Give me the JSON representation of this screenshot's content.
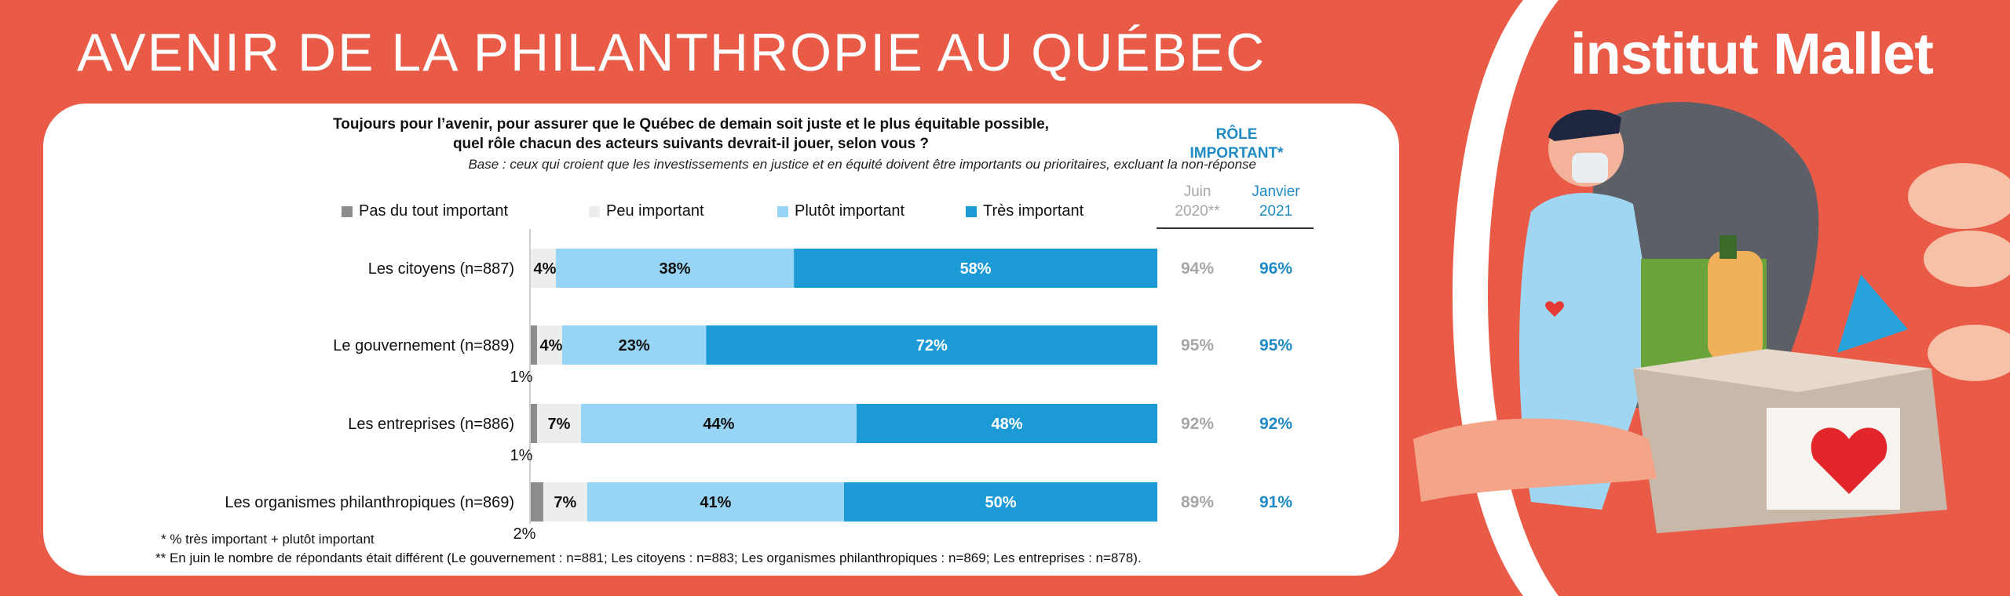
{
  "header": {
    "title": "AVENIR DE LA PHILANTHROPIE AU QUÉBEC",
    "logo_text": "institut Mallet"
  },
  "question": {
    "line1": "Toujours pour l’avenir, pour assurer que le Québec de demain soit juste et le plus équitable possible,",
    "line2": "quel rôle chacun des acteurs suivants devrait-il jouer, selon vous ?",
    "base": "Base : ceux qui croient que les investissements en justice et en équité doivent être importants ou prioritaires, excluant la non-réponse"
  },
  "side_table": {
    "title_line1": "RÔLE",
    "title_line2": "IMPORTANT*",
    "col1_line1": "Juin",
    "col1_line2": "2020**",
    "col2_line1": "Janvier",
    "col2_line2": "2021"
  },
  "colors": {
    "pas_du_tout": "#8c8c8c",
    "peu": "#ededed",
    "plutot": "#97d4f5",
    "tres": "#1b9ad6",
    "juin_text": "#a6a6a6",
    "janvier_text": "#1f8ac3",
    "background": "#e95b47"
  },
  "chart_data": {
    "type": "bar",
    "orientation": "horizontal",
    "stacked": true,
    "categories": [
      "Les citoyens (n=887)",
      "Le gouvernement (n=889)",
      "Les entreprises (n=886)",
      "Les organismes philanthropiques (n=869)"
    ],
    "series": [
      {
        "name": "Pas du tout important",
        "values": [
          0,
          1,
          1,
          2
        ],
        "labels": [
          "",
          "1%",
          "1%",
          "2%"
        ]
      },
      {
        "name": "Peu important",
        "values": [
          4,
          4,
          7,
          7
        ],
        "labels": [
          "4%",
          "4%",
          "7%",
          "7%"
        ]
      },
      {
        "name": "Plutôt important",
        "values": [
          38,
          23,
          44,
          41
        ],
        "labels": [
          "38%",
          "23%",
          "44%",
          "41%"
        ]
      },
      {
        "name": "Très important",
        "values": [
          58,
          72,
          48,
          50
        ],
        "labels": [
          "58%",
          "72%",
          "48%",
          "50%"
        ]
      }
    ],
    "xlim": [
      0,
      100
    ],
    "legend_position": "top",
    "grid": false,
    "role_important_juin_2020": [
      "94%",
      "95%",
      "92%",
      "89%"
    ],
    "role_important_janvier_2021": [
      "96%",
      "95%",
      "92%",
      "91%"
    ]
  },
  "footnotes": {
    "note1": "* % très important + plutôt important",
    "note2": "** En juin le nombre de répondants était différent (Le gouvernement : n=881; Les citoyens : n=883; Les organismes philanthropiques : n=869; Les entreprises : n=878)."
  }
}
